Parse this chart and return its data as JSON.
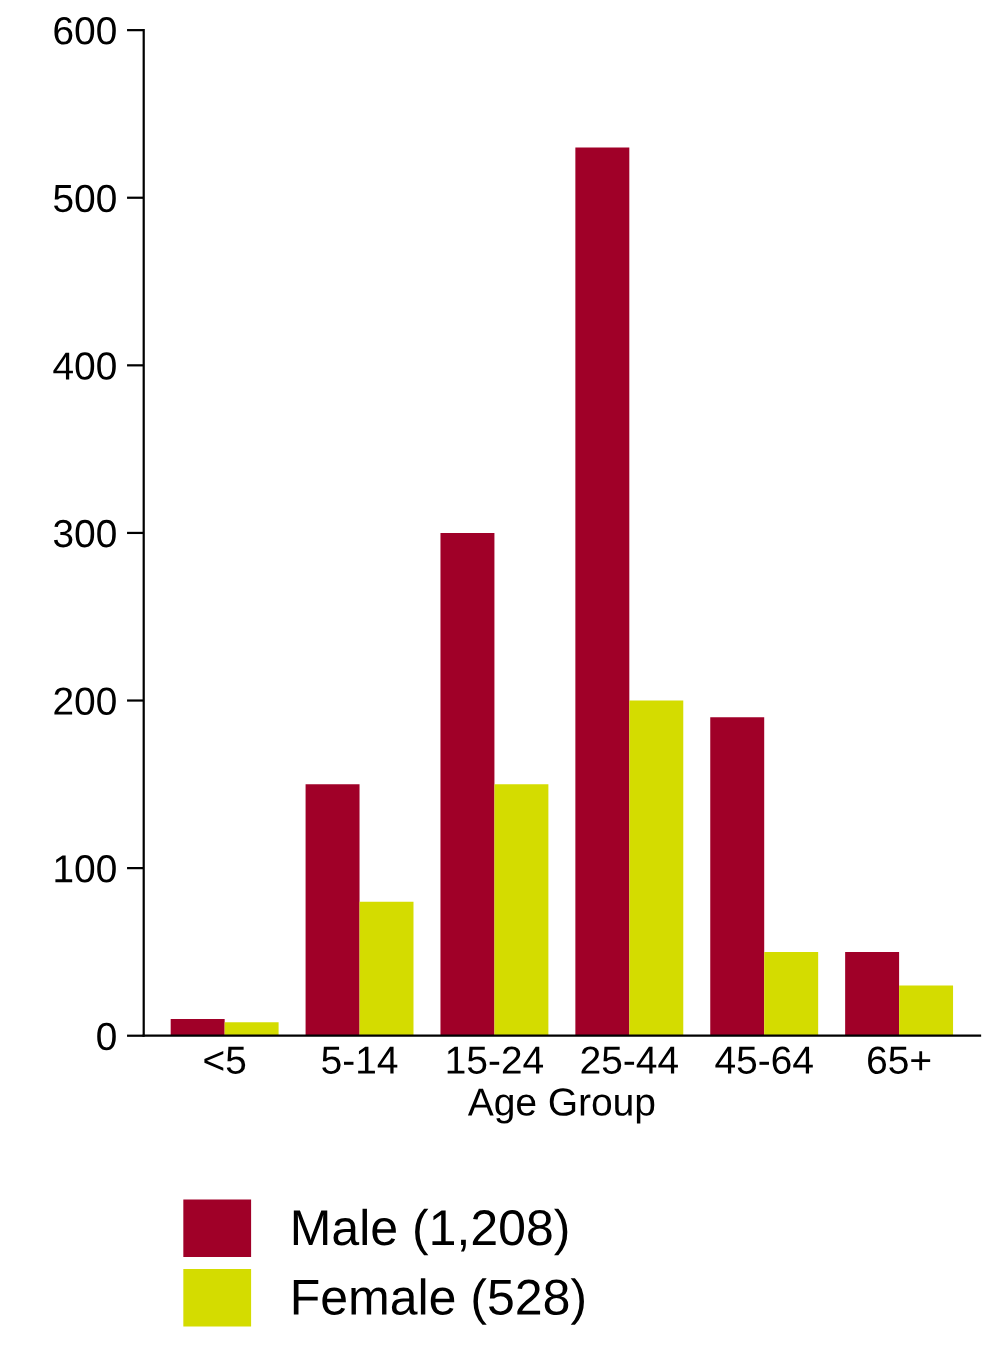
{
  "chart_data": {
    "type": "bar",
    "xlabel": "Age Group",
    "categories": [
      "<5",
      "5-14",
      "15-24",
      "25-44",
      "45-64",
      "65+"
    ],
    "series": [
      {
        "name": "Male (1,208)",
        "color": "#a00028",
        "values": [
          10,
          150,
          300,
          530,
          190,
          50
        ]
      },
      {
        "name": "Female (528)",
        "color": "#d4dc00",
        "values": [
          8,
          80,
          150,
          200,
          50,
          30
        ]
      }
    ],
    "ylim": [
      0,
      600
    ],
    "yticks": [
      0,
      100,
      200,
      300,
      400,
      500,
      600
    ],
    "grid": false,
    "legend": "bottom"
  }
}
